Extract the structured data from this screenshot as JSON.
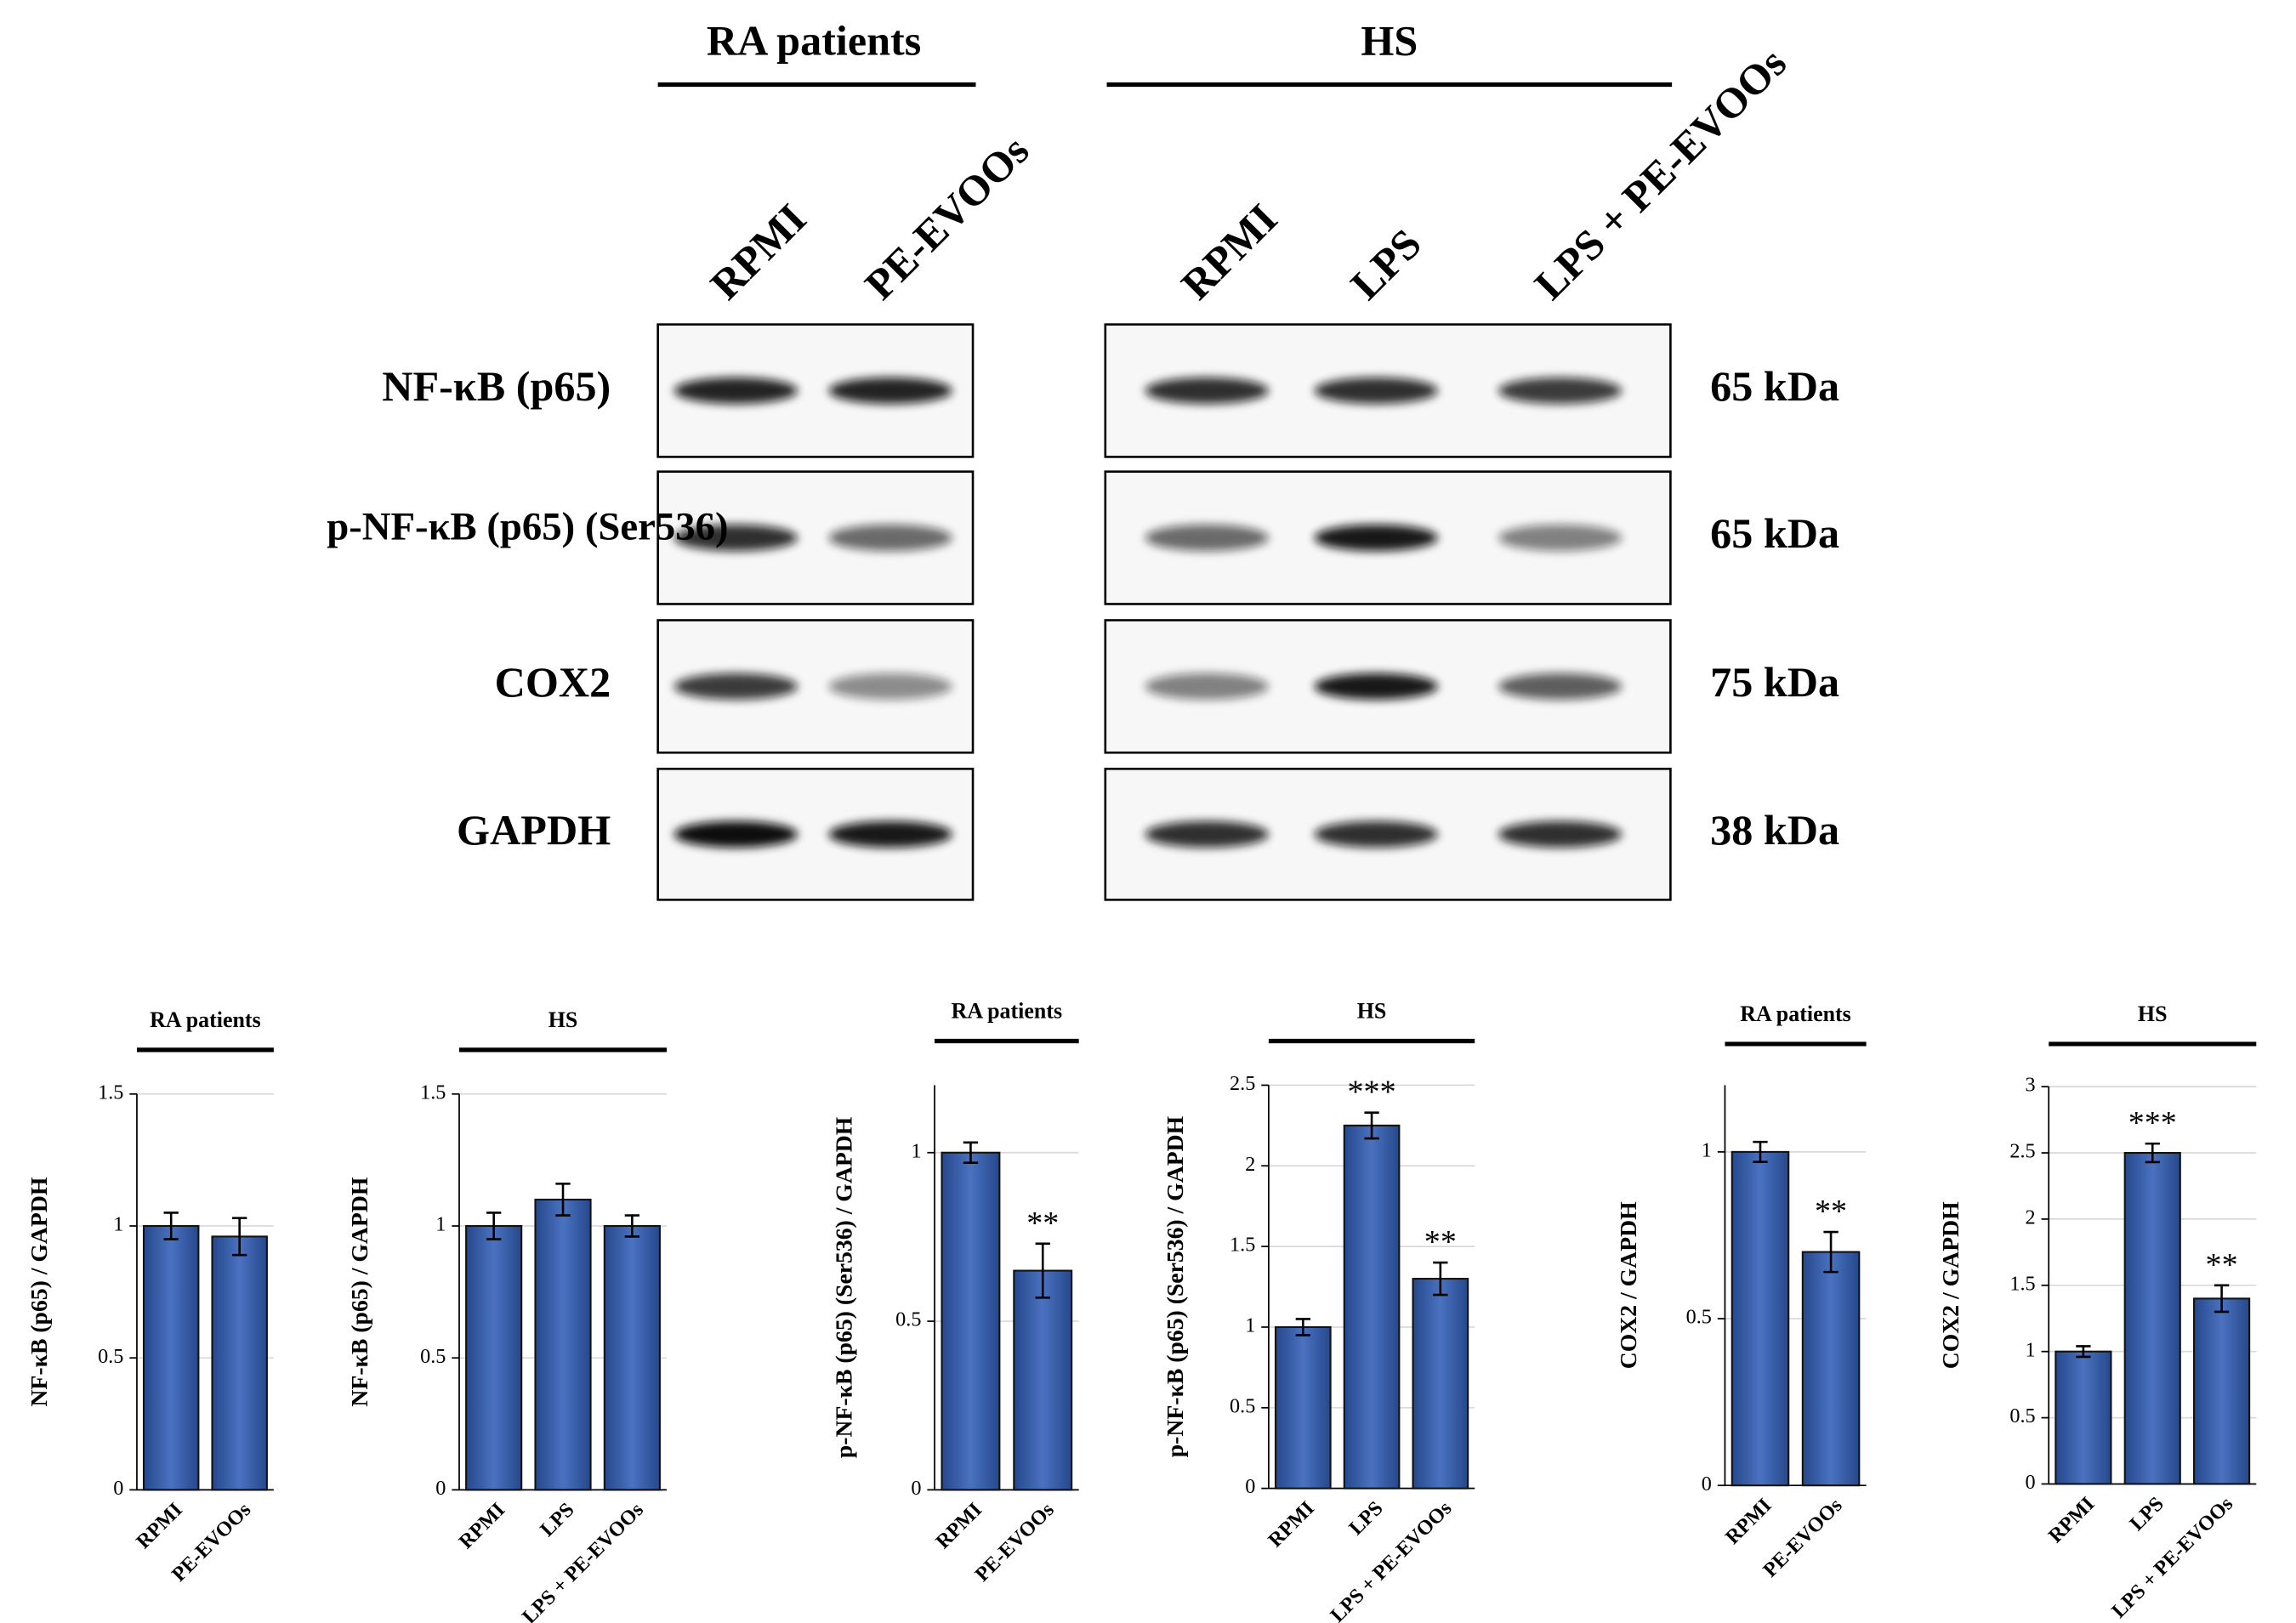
{
  "blot": {
    "groups": [
      {
        "title": "RA patients",
        "lanes": [
          "RPMI",
          "PE-EVOOs"
        ]
      },
      {
        "title": "HS",
        "lanes": [
          "RPMI",
          "LPS",
          "LPS + PE-EVOOs"
        ]
      }
    ],
    "rows": [
      {
        "protein": "NF-κB (p65)",
        "size": "65 kDa"
      },
      {
        "protein": "p-NF-κB (p65) (Ser536)",
        "size": "65 kDa"
      },
      {
        "protein": "COX2",
        "size": "75 kDa"
      },
      {
        "protein": "GAPDH",
        "size": "38 kDa"
      }
    ]
  },
  "chart_data": [
    {
      "type": "bar",
      "title": "RA patients",
      "y_label": "NF-κB (p65) / GAPDH",
      "categories": [
        "RPMI",
        "PE-EVOOs"
      ],
      "values": [
        1,
        0.96
      ],
      "errors": [
        0.05,
        0.07
      ],
      "color": "#3a62ad",
      "ylim": [
        0,
        1.5
      ],
      "yticks": [
        0,
        0.5,
        1,
        1.5
      ],
      "grid": true
    },
    {
      "type": "bar",
      "title": "HS",
      "y_label": "NF-κB (p65) / GAPDH",
      "categories": [
        "RPMI",
        "LPS",
        "LPS + PE-EVOOs"
      ],
      "values": [
        1,
        1.1,
        1.0
      ],
      "errors": [
        0.05,
        0.06,
        0.04
      ],
      "color": "#3a62ad",
      "ylim": [
        0,
        1.5
      ],
      "yticks": [
        0,
        0.5,
        1,
        1.5
      ],
      "grid": true
    },
    {
      "type": "bar",
      "title": "RA patients",
      "y_label": "p-NF-κB (p65) (Ser536) / GAPDH",
      "categories": [
        "RPMI",
        "PE-EVOOs"
      ],
      "values": [
        1,
        0.65
      ],
      "errors": [
        0.03,
        0.08
      ],
      "annotations": [
        null,
        "**"
      ],
      "color": "#3a62ad",
      "ylim": [
        0,
        1.2
      ],
      "yticks": [
        0,
        0.5,
        1
      ],
      "grid": true
    },
    {
      "type": "bar",
      "title": "HS",
      "y_label": "p-NF-κB (p65) (Ser536) / GAPDH",
      "categories": [
        "RPMI",
        "LPS",
        "LPS + PE-EVOOs"
      ],
      "values": [
        1,
        2.25,
        1.3
      ],
      "errors": [
        0.05,
        0.08,
        0.1
      ],
      "annotations": [
        null,
        "***",
        "**"
      ],
      "color": "#3a62ad",
      "ylim": [
        0,
        2.5
      ],
      "yticks": [
        0,
        0.5,
        1,
        1.5,
        2,
        2.5
      ],
      "grid": true
    },
    {
      "type": "bar",
      "title": "RA patients",
      "y_label": "COX2 / GAPDH",
      "categories": [
        "RPMI",
        "PE-EVOOs"
      ],
      "values": [
        1,
        0.7
      ],
      "errors": [
        0.03,
        0.06
      ],
      "annotations": [
        null,
        "**"
      ],
      "color": "#3a62ad",
      "ylim": [
        0,
        1.2
      ],
      "yticks": [
        0,
        0.5,
        1
      ],
      "grid": true
    },
    {
      "type": "bar",
      "title": "HS",
      "y_label": "COX2 / GAPDH",
      "categories": [
        "RPMI",
        "LPS",
        "LPS + PE-EVOOs"
      ],
      "values": [
        1,
        2.5,
        1.4
      ],
      "errors": [
        0.04,
        0.07,
        0.1
      ],
      "annotations": [
        null,
        "***",
        "**"
      ],
      "color": "#3a62ad",
      "ylim": [
        0,
        3
      ],
      "yticks": [
        0,
        0.5,
        1,
        1.5,
        2,
        2.5,
        3
      ],
      "grid": true
    }
  ]
}
